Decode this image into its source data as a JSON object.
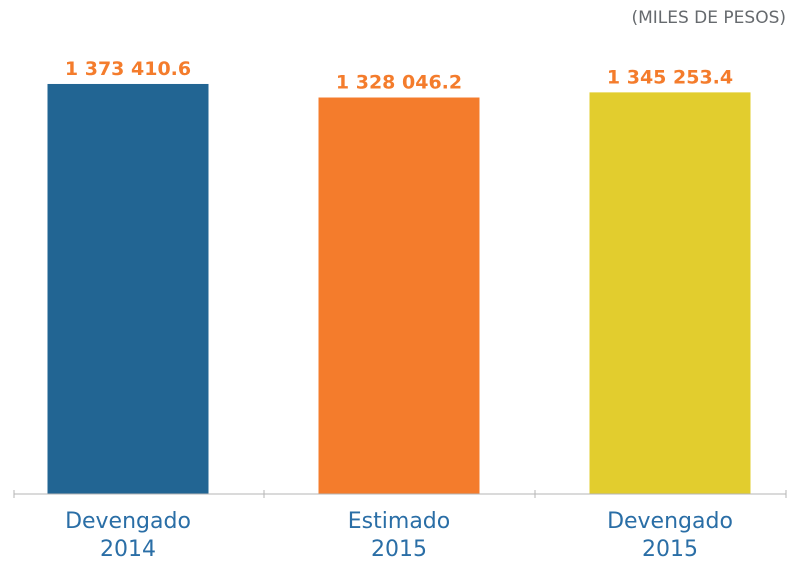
{
  "units_label": "(MILES DE PESOS)",
  "chart_data": {
    "type": "bar",
    "categories": [
      [
        "Devengado",
        "2014"
      ],
      [
        "Estimado",
        "2015"
      ],
      [
        "Devengado",
        "2015"
      ]
    ],
    "values": [
      1373410.6,
      1328046.2,
      1345253.4
    ],
    "value_labels": [
      "1 373 410.6",
      "1 328 046.2",
      "1 345 253.4"
    ],
    "colors": [
      "#226593",
      "#f47c2c",
      "#e2cd2e"
    ],
    "ylim": [
      0,
      1380000
    ],
    "grid": false,
    "legend": "none"
  }
}
